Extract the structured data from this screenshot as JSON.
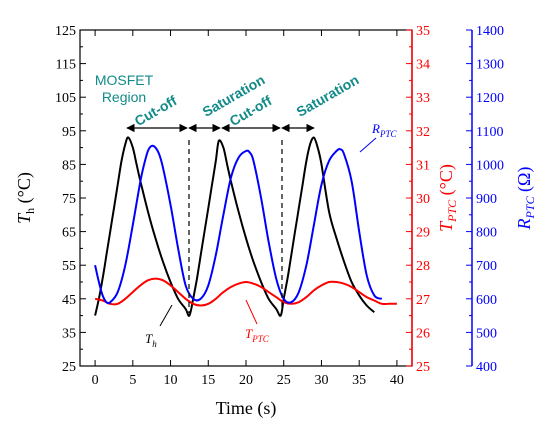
{
  "chart_data": {
    "type": "line",
    "xlabel": "Time (s)",
    "x_ticks": [
      "0",
      "5",
      "10",
      "15",
      "20",
      "25",
      "30",
      "35",
      "40"
    ],
    "xlim": [
      -2,
      42
    ],
    "y_left": {
      "label_main": "T",
      "label_sub": "h",
      "label_unit": " (°C)",
      "lim": [
        25,
        125
      ],
      "ticks": [
        "25",
        "35",
        "45",
        "55",
        "65",
        "75",
        "85",
        "95",
        "105",
        "115",
        "125"
      ],
      "color": "#000000"
    },
    "y_right1": {
      "label_main": "T",
      "label_sub": "PTC",
      "label_unit": " (°C)",
      "lim": [
        25,
        35
      ],
      "ticks": [
        "25",
        "26",
        "27",
        "28",
        "29",
        "30",
        "31",
        "32",
        "33",
        "34",
        "35"
      ],
      "color": "#ff0000"
    },
    "y_right2": {
      "label_main": "R",
      "label_sub": "PTC",
      "label_unit": " (Ω)",
      "lim": [
        400,
        1400
      ],
      "ticks": [
        "400",
        "500",
        "600",
        "700",
        "800",
        "900",
        "1000",
        "1100",
        "1200",
        "1300",
        "1400"
      ],
      "color": "#0000ff"
    },
    "series": [
      {
        "axis": "y_left",
        "color": "#000000",
        "x": [
          0,
          0.5,
          1,
          1.5,
          2,
          2.5,
          3,
          3.5,
          4,
          4.4,
          5,
          5.5,
          6,
          7,
          8,
          9,
          10,
          11,
          12,
          12.5,
          13,
          13.5,
          14,
          14.5,
          15,
          15.5,
          16,
          16.4,
          17,
          17.5,
          18,
          19,
          20,
          21,
          22,
          23,
          24,
          24.6,
          25,
          25.5,
          26,
          26.5,
          27,
          27.5,
          28,
          28.5,
          29,
          29.5,
          30,
          31,
          32,
          33,
          34,
          35,
          36,
          37
        ],
        "y": [
          40,
          45,
          51,
          58,
          65,
          72,
          79,
          86,
          91,
          93,
          90,
          85,
          80,
          71,
          63,
          56,
          50,
          45,
          42,
          40,
          45,
          51,
          58,
          65,
          72,
          79,
          86,
          92,
          90,
          85,
          80,
          71,
          63,
          56,
          50,
          45,
          42,
          40,
          45,
          51,
          58,
          65,
          72,
          79,
          86,
          91,
          93,
          90,
          85,
          71,
          63,
          56,
          50,
          46,
          43,
          41
        ]
      },
      {
        "axis": "y_right1",
        "color": "#ff0000",
        "x": [
          0,
          1,
          2,
          3,
          4,
          5,
          6,
          7,
          8,
          9,
          10,
          11,
          12,
          13,
          14,
          15,
          16,
          17,
          18,
          19,
          20,
          21,
          22,
          23,
          24,
          25,
          26,
          27,
          28,
          29,
          30,
          31,
          32,
          33,
          34,
          35,
          36,
          37,
          38,
          39,
          40
        ],
        "y": [
          27.0,
          26.95,
          26.85,
          26.85,
          27.0,
          27.2,
          27.4,
          27.55,
          27.6,
          27.55,
          27.4,
          27.2,
          27.0,
          26.85,
          26.8,
          26.85,
          27.0,
          27.2,
          27.35,
          27.45,
          27.5,
          27.45,
          27.35,
          27.2,
          27.05,
          26.9,
          26.85,
          26.9,
          27.05,
          27.25,
          27.4,
          27.5,
          27.5,
          27.45,
          27.35,
          27.2,
          27.05,
          26.95,
          26.85,
          26.85,
          26.85
        ]
      },
      {
        "axis": "y_right2",
        "color": "#0000ff",
        "x": [
          0,
          0.5,
          1,
          1.5,
          2,
          3,
          4,
          5,
          6,
          6.5,
          7,
          7.5,
          8,
          8.5,
          9,
          10,
          11,
          12,
          13,
          14,
          15,
          16,
          17,
          18,
          19,
          20,
          20.5,
          21,
          22,
          23,
          24,
          25,
          26,
          27,
          28,
          29,
          30,
          31,
          32,
          32.5,
          33,
          34,
          35,
          36,
          37,
          38
        ],
        "y": [
          700,
          650,
          610,
          590,
          590,
          620,
          700,
          820,
          950,
          1000,
          1040,
          1055,
          1050,
          1030,
          990,
          880,
          750,
          640,
          600,
          600,
          640,
          730,
          850,
          960,
          1020,
          1040,
          1035,
          1010,
          900,
          770,
          660,
          600,
          590,
          620,
          700,
          820,
          940,
          1010,
          1040,
          1045,
          1030,
          950,
          800,
          670,
          610,
          600
        ]
      }
    ],
    "annotations": {
      "cutoff_1": "Cut-off",
      "saturation_1": "Saturation",
      "cutoff_2": "Cut-off",
      "saturation_2": "Saturation",
      "region_line1": "MOSFET",
      "region_line2": "Region"
    },
    "curve_labels": {
      "th_main": "T",
      "th_sub": "h",
      "tptc_main": "T",
      "tptc_sub": "PTC",
      "rptc_main": "R",
      "rptc_sub": "PTC"
    },
    "colors": {
      "annotation_teal": "#138a8a",
      "tptc_red": "#ff0000",
      "rptc_blue": "#0000ff"
    }
  }
}
